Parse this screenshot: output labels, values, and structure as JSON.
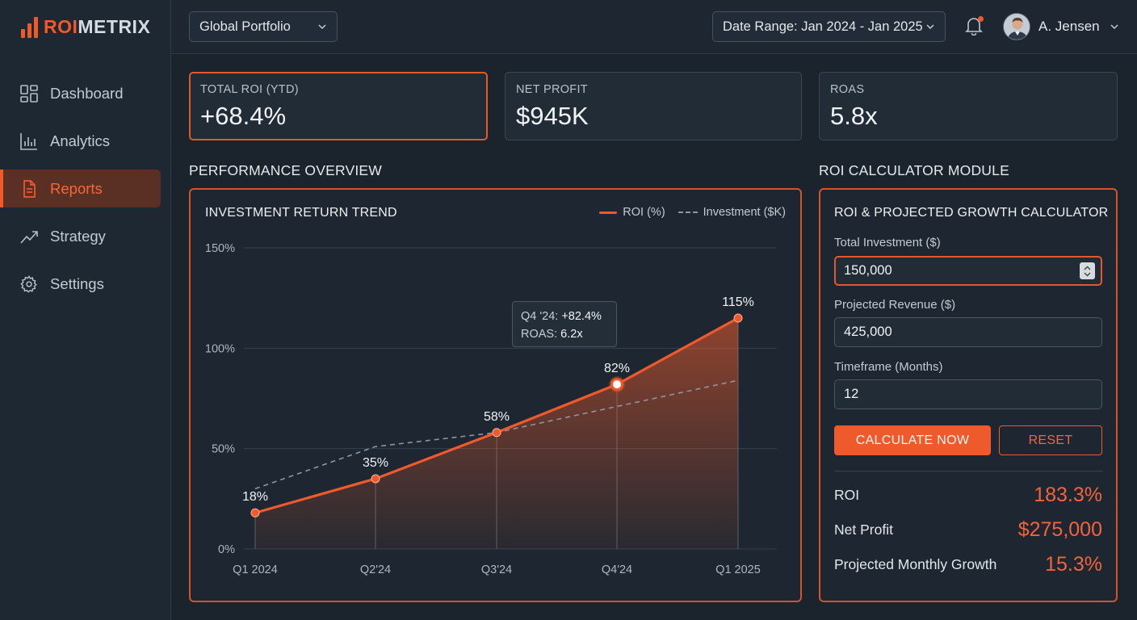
{
  "brand": {
    "name_part1": "ROI",
    "name_part2": "METRIX"
  },
  "sidebar": {
    "items": [
      {
        "label": "Dashboard",
        "icon": "dashboard-icon"
      },
      {
        "label": "Analytics",
        "icon": "bar-chart-icon"
      },
      {
        "label": "Reports",
        "icon": "document-icon",
        "active": true
      },
      {
        "label": "Strategy",
        "icon": "trend-icon"
      },
      {
        "label": "Settings",
        "icon": "gear-icon"
      }
    ]
  },
  "topbar": {
    "portfolio_select": "Global Portfolio",
    "date_range": "Date Range: Jan 2024 - Jan 2025",
    "user_name": "A. Jensen",
    "notification_icon": "bell-icon"
  },
  "kpis": [
    {
      "label": "TOTAL ROI (YTD)",
      "value": "+68.4%"
    },
    {
      "label": "NET PROFIT",
      "value": "$945K"
    },
    {
      "label": "ROAS",
      "value": "5.8x"
    }
  ],
  "sections": {
    "performance": "PERFORMANCE OVERVIEW",
    "calculator": "ROI CALCULATOR MODULE"
  },
  "chart_data": {
    "type": "line",
    "title": "INVESTMENT RETURN TREND",
    "categories": [
      "Q1 2024",
      "Q2'24",
      "Q3'24",
      "Q4'24",
      "Q1 2025"
    ],
    "series": [
      {
        "name": "ROI (%)",
        "values": [
          18,
          35,
          58,
          82,
          115
        ],
        "style": "solid",
        "color": "#ee5a2b",
        "labels": [
          "18%",
          "35%",
          "58%",
          "82%",
          "115%"
        ]
      },
      {
        "name": "Investment ($K)",
        "values": [
          30,
          51,
          58,
          71,
          84
        ],
        "style": "dashed",
        "color": "#8d96a0"
      }
    ],
    "yticks": [
      "150%",
      "100%",
      "50%",
      "0%"
    ],
    "ylim": [
      0,
      150
    ],
    "grid": true,
    "legend": "top-right",
    "highlight_index": 3,
    "tooltip": {
      "line1_label": "Q4 '24:",
      "line1_value": "+82.4%",
      "line2_label": "ROAS:",
      "line2_value": "6.2x"
    }
  },
  "calculator": {
    "title": "ROI & PROJECTED GROWTH CALCULATOR",
    "fields": [
      {
        "label": "Total Investment ($)",
        "value": "150,000"
      },
      {
        "label": "Projected Revenue ($)",
        "value": "425,000"
      },
      {
        "label": "Timeframe (Months)",
        "value": "12"
      }
    ],
    "calculate_label": "CALCULATE NOW",
    "reset_label": "RESET",
    "results": [
      {
        "label": "ROI",
        "value": "183.3%"
      },
      {
        "label": "Net Profit",
        "value": "$275,000"
      },
      {
        "label": "Projected Monthly Growth",
        "value": "15.3%"
      }
    ]
  }
}
